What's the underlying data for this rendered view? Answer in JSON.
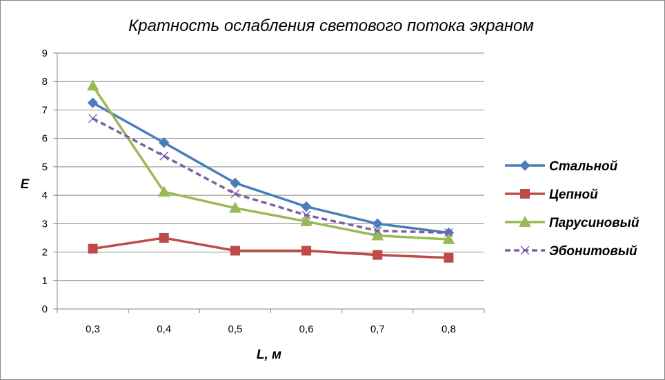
{
  "chart_data": {
    "type": "line",
    "title": "Кратность ослабления  светового потока экраном",
    "xlabel": "L, м",
    "ylabel": "E",
    "categories": [
      "0,3",
      "0,4",
      "0,5",
      "0,6",
      "0,7",
      "0,8"
    ],
    "ylim": [
      0,
      9
    ],
    "yticks": [
      "0",
      "1",
      "2",
      "3",
      "4",
      "5",
      "6",
      "7",
      "8",
      "9"
    ],
    "grid": true,
    "legend_position": "right",
    "series": [
      {
        "name": "Стальной",
        "values": [
          7.25,
          5.85,
          4.43,
          3.6,
          3.0,
          2.68
        ],
        "color": "#4a7ebb",
        "marker": "diamond",
        "dash": false
      },
      {
        "name": "Цепной",
        "values": [
          2.12,
          2.5,
          2.05,
          2.05,
          1.9,
          1.8
        ],
        "color": "#be4b48",
        "marker": "square",
        "dash": false
      },
      {
        "name": "Парусиновый",
        "values": [
          7.85,
          4.12,
          3.55,
          3.08,
          2.58,
          2.45
        ],
        "color": "#98b954",
        "marker": "triangle",
        "dash": false
      },
      {
        "name": "Эбонитовый",
        "values": [
          6.7,
          5.38,
          4.05,
          3.3,
          2.75,
          2.68
        ],
        "color": "#7d60a0",
        "marker": "x",
        "dash": true
      }
    ]
  }
}
